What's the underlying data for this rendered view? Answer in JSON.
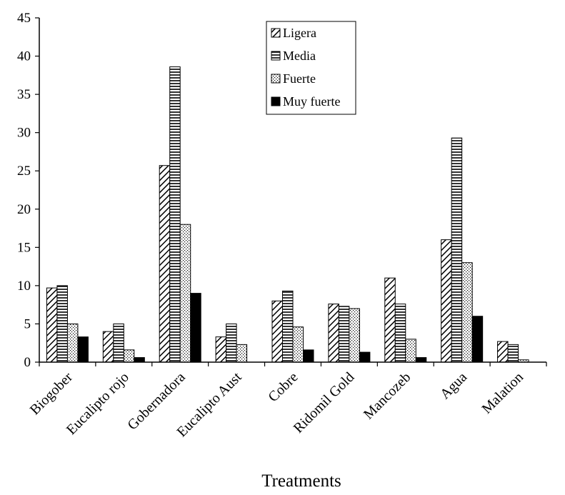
{
  "chart_data": {
    "type": "bar",
    "title": "",
    "xlabel": "Treatments",
    "ylabel": "",
    "ylim": [
      0,
      45
    ],
    "yticks": [
      0,
      5,
      10,
      15,
      20,
      25,
      30,
      35,
      40,
      45
    ],
    "grid": false,
    "legend_position": "top-center",
    "categories": [
      "Biogober",
      "Eucalipto rojo",
      "Gobernadora",
      "Eucalipto Aust",
      "Cobre",
      "Ridomil Gold",
      "Mancozeb",
      "Agua",
      "Malation"
    ],
    "series": [
      {
        "name": "Ligera",
        "pattern": "diagonal",
        "values": [
          9.7,
          4.0,
          25.7,
          3.3,
          8.0,
          7.6,
          11.0,
          16.0,
          2.7
        ]
      },
      {
        "name": "Media",
        "pattern": "horizontal",
        "values": [
          10.0,
          5.0,
          38.6,
          5.0,
          9.3,
          7.3,
          7.6,
          29.3,
          2.3
        ]
      },
      {
        "name": "Fuerte",
        "pattern": "dots",
        "values": [
          5.0,
          1.6,
          18.0,
          2.3,
          4.6,
          7.0,
          3.0,
          13.0,
          0.3
        ]
      },
      {
        "name": "Muy fuerte",
        "pattern": "solid",
        "values": [
          3.3,
          0.6,
          9.0,
          0.0,
          1.6,
          1.3,
          0.6,
          6.0,
          0.0
        ]
      }
    ]
  }
}
